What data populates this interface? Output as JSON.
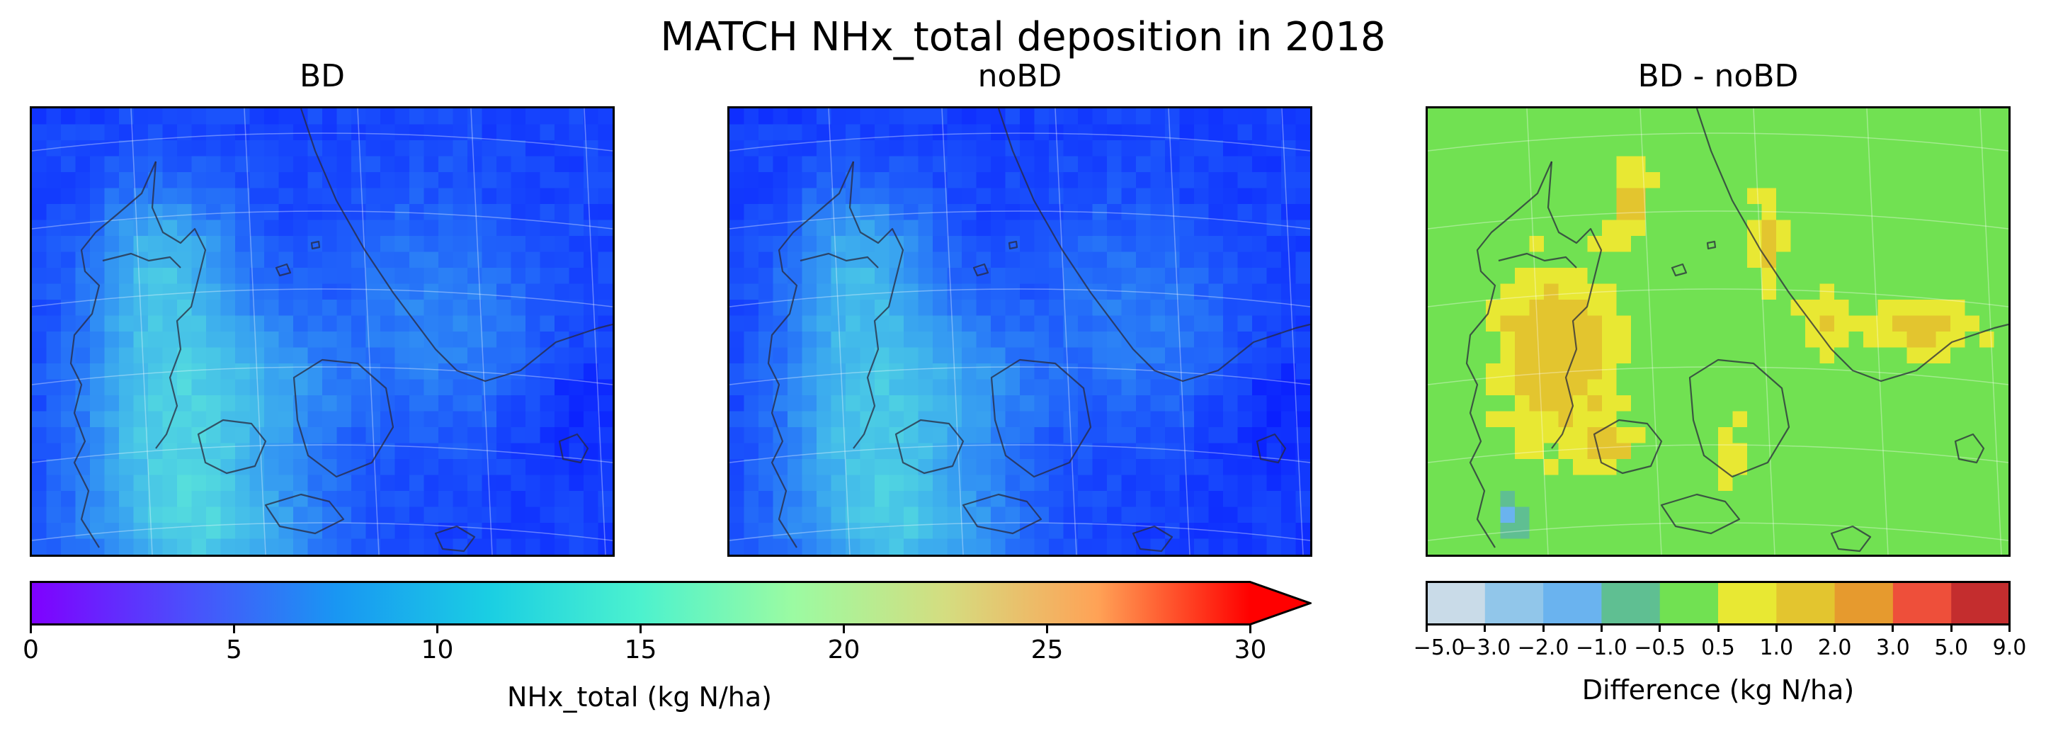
{
  "title": "MATCH NHx_total deposition in 2018",
  "panels": [
    {
      "id": "bd",
      "title": "BD"
    },
    {
      "id": "nobd",
      "title": "noBD"
    },
    {
      "id": "diff",
      "title": "BD - noBD"
    }
  ],
  "colorbar_main": {
    "label": "NHx_total (kg N/ha)",
    "min": 0,
    "max": 30,
    "ticks": [
      "0",
      "5",
      "10",
      "15",
      "20",
      "25",
      "30"
    ],
    "extend": "max",
    "colormap": "rainbow"
  },
  "colorbar_diff": {
    "label": "Difference (kg N/ha)",
    "ticks": [
      "−5.0",
      "−3.0",
      "−2.0",
      "−1.0",
      "−0.5",
      "0.5",
      "1.0",
      "2.0",
      "3.0",
      "5.0",
      "9.0"
    ],
    "colors": [
      "#c9dbe8",
      "#91c6ea",
      "#6ab3ef",
      "#5fbf92",
      "#71e152",
      "#e8e833",
      "#e3c52f",
      "#e69a2e",
      "#ee4f3a",
      "#c42d2e"
    ]
  },
  "chart_data": [
    {
      "type": "heatmap",
      "title": "BD",
      "description_units": "kg N/ha",
      "colormap": "rainbow",
      "vmin": 0,
      "vmax": 30,
      "value_range_observed": [
        1,
        12
      ]
    },
    {
      "type": "heatmap",
      "title": "noBD",
      "colormap": "rainbow",
      "vmin": 0,
      "vmax": 30,
      "value_range_observed": [
        1,
        11
      ]
    },
    {
      "type": "heatmap",
      "title": "BD - noBD",
      "colormap": "discrete",
      "bounds": [
        -5.0,
        -3.0,
        -2.0,
        -1.0,
        -0.5,
        0.5,
        1.0,
        2.0,
        3.0,
        5.0,
        9.0
      ],
      "dominant_bin": "-0.5 to 0.5"
    }
  ]
}
